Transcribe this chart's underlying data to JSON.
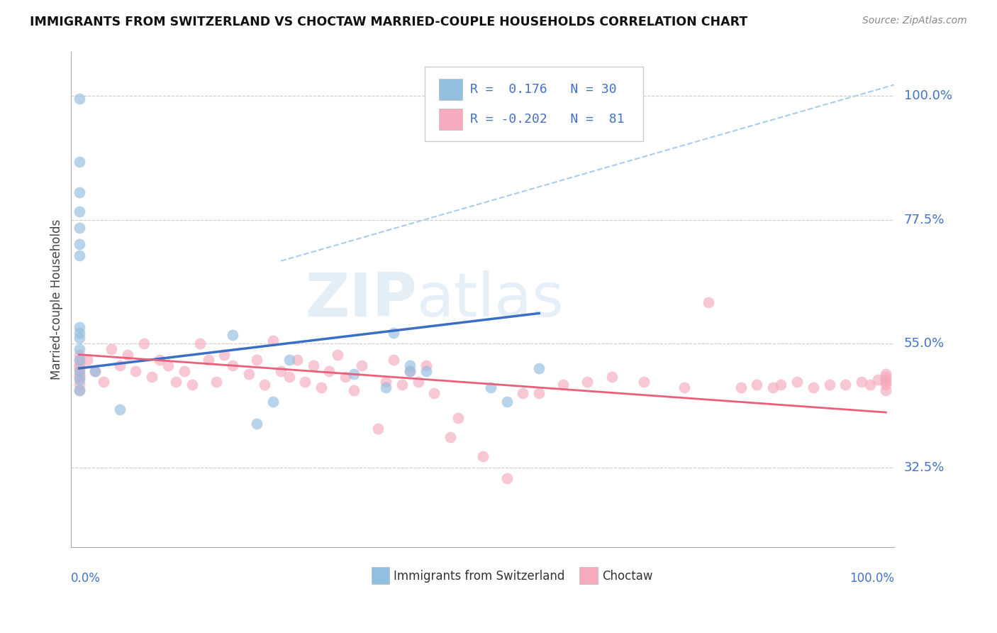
{
  "title": "IMMIGRANTS FROM SWITZERLAND VS CHOCTAW MARRIED-COUPLE HOUSEHOLDS CORRELATION CHART",
  "source_text": "Source: ZipAtlas.com",
  "ylabel": "Married-couple Households",
  "ytick_labels": [
    "32.5%",
    "55.0%",
    "77.5%",
    "100.0%"
  ],
  "ytick_values": [
    0.325,
    0.55,
    0.775,
    1.0
  ],
  "blue_color": "#92BEE0",
  "pink_color": "#F5AABE",
  "blue_line_color": "#3A6FC4",
  "pink_line_color": "#E8607A",
  "dashed_line_color": "#AACCEE",
  "watermark_color": "#D8E8F5",
  "blue_label": "Immigrants from Switzerland",
  "pink_label": "Choctaw",
  "xlim": [
    -0.01,
    1.01
  ],
  "ylim": [
    0.18,
    1.08
  ],
  "blue_x": [
    0.0,
    0.0,
    0.0,
    0.0,
    0.0,
    0.0,
    0.0,
    0.0,
    0.0,
    0.0,
    0.0,
    0.0,
    0.0,
    0.0,
    0.0,
    0.02,
    0.05,
    0.19,
    0.22,
    0.24,
    0.26,
    0.34,
    0.38,
    0.39,
    0.41,
    0.41,
    0.43,
    0.51,
    0.53,
    0.57
  ],
  "blue_y": [
    0.995,
    0.88,
    0.825,
    0.79,
    0.76,
    0.73,
    0.71,
    0.58,
    0.57,
    0.56,
    0.54,
    0.52,
    0.5,
    0.485,
    0.465,
    0.5,
    0.43,
    0.565,
    0.405,
    0.445,
    0.52,
    0.495,
    0.47,
    0.57,
    0.5,
    0.51,
    0.5,
    0.47,
    0.445,
    0.505
  ],
  "pink_x": [
    0.0,
    0.0,
    0.0,
    0.0,
    0.0,
    0.0,
    0.0,
    0.0,
    0.0,
    0.0,
    0.01,
    0.02,
    0.03,
    0.04,
    0.05,
    0.06,
    0.07,
    0.08,
    0.09,
    0.1,
    0.11,
    0.12,
    0.13,
    0.14,
    0.15,
    0.16,
    0.17,
    0.18,
    0.19,
    0.21,
    0.22,
    0.23,
    0.24,
    0.25,
    0.26,
    0.27,
    0.28,
    0.29,
    0.3,
    0.31,
    0.32,
    0.33,
    0.34,
    0.35,
    0.37,
    0.38,
    0.39,
    0.4,
    0.41,
    0.42,
    0.43,
    0.44,
    0.46,
    0.47,
    0.5,
    0.53,
    0.55,
    0.57,
    0.6,
    0.63,
    0.66,
    0.7,
    0.75,
    0.78,
    0.82,
    0.84,
    0.86,
    0.87,
    0.89,
    0.91,
    0.93,
    0.95,
    0.97,
    0.98,
    0.99,
    1.0,
    1.0,
    1.0,
    1.0,
    1.0,
    1.0
  ],
  "pink_y": [
    0.51,
    0.495,
    0.505,
    0.52,
    0.49,
    0.475,
    0.53,
    0.465,
    0.51,
    0.49,
    0.52,
    0.5,
    0.48,
    0.54,
    0.51,
    0.53,
    0.5,
    0.55,
    0.49,
    0.52,
    0.51,
    0.48,
    0.5,
    0.475,
    0.55,
    0.52,
    0.48,
    0.53,
    0.51,
    0.495,
    0.52,
    0.475,
    0.555,
    0.5,
    0.49,
    0.52,
    0.48,
    0.51,
    0.47,
    0.5,
    0.53,
    0.49,
    0.465,
    0.51,
    0.395,
    0.48,
    0.52,
    0.475,
    0.5,
    0.48,
    0.51,
    0.46,
    0.38,
    0.415,
    0.345,
    0.305,
    0.46,
    0.46,
    0.475,
    0.48,
    0.49,
    0.48,
    0.47,
    0.625,
    0.47,
    0.475,
    0.47,
    0.475,
    0.48,
    0.47,
    0.475,
    0.475,
    0.48,
    0.475,
    0.485,
    0.48,
    0.49,
    0.465,
    0.485,
    0.475,
    0.495
  ],
  "blue_line_x": [
    0.0,
    0.57
  ],
  "blue_line_y": [
    0.505,
    0.605
  ],
  "pink_line_x": [
    0.0,
    1.0
  ],
  "pink_line_y": [
    0.53,
    0.425
  ],
  "dash_line_x": [
    0.25,
    1.01
  ],
  "dash_line_y": [
    0.7,
    1.02
  ]
}
